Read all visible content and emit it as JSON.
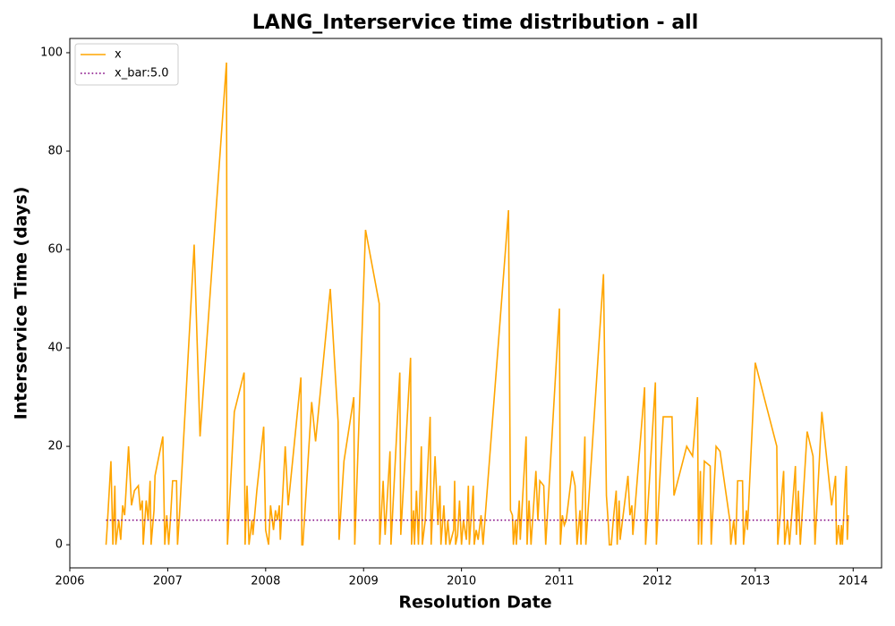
{
  "chart_data": {
    "type": "line",
    "title": "LANG_Interservice time distribution - all",
    "x_label": "Resolution Date",
    "y_label": "Interservice Time (days)",
    "xlim": [
      2006,
      2014.29
    ],
    "ylim": [
      -4.7,
      102.9
    ],
    "xticks": [
      2006,
      2007,
      2008,
      2009,
      2010,
      2011,
      2012,
      2013,
      2014
    ],
    "yticks": [
      0,
      20,
      40,
      60,
      80,
      100
    ],
    "legend": "upper left",
    "series": [
      {
        "name": "x",
        "color": "#ffa500",
        "style": "solid",
        "x": [
          2006.37,
          2006.38,
          2006.42,
          2006.44,
          2006.46,
          2006.47,
          2006.5,
          2006.52,
          2006.54,
          2006.56,
          2006.6,
          2006.63,
          2006.66,
          2006.7,
          2006.72,
          2006.74,
          2006.75,
          2006.78,
          2006.8,
          2006.82,
          2006.83,
          2006.86,
          2006.87,
          2006.95,
          2006.97,
          2006.99,
          2007.01,
          2007.03,
          2007.05,
          2007.09,
          2007.1,
          2007.12,
          2007.27,
          2007.33,
          2007.6,
          2007.61,
          2007.68,
          2007.78,
          2007.79,
          2007.81,
          2007.83,
          2007.86,
          2007.87,
          2007.91,
          2007.98,
          2008.0,
          2008.03,
          2008.05,
          2008.08,
          2008.1,
          2008.12,
          2008.14,
          2008.15,
          2008.2,
          2008.23,
          2008.36,
          2008.37,
          2008.38,
          2008.47,
          2008.51,
          2008.66,
          2008.74,
          2008.75,
          2008.8,
          2008.9,
          2008.91,
          2009.02,
          2009.16,
          2009.165,
          2009.2,
          2009.22,
          2009.27,
          2009.28,
          2009.37,
          2009.38,
          2009.48,
          2009.49,
          2009.51,
          2009.52,
          2009.54,
          2009.56,
          2009.59,
          2009.6,
          2009.63,
          2009.68,
          2009.69,
          2009.73,
          2009.76,
          2009.78,
          2009.79,
          2009.82,
          2009.84,
          2009.86,
          2009.88,
          2009.92,
          2009.93,
          2009.94,
          2009.96,
          2009.98,
          2010.0,
          2010.02,
          2010.05,
          2010.07,
          2010.08,
          2010.12,
          2010.13,
          2010.15,
          2010.17,
          2010.2,
          2010.22,
          2010.48,
          2010.5,
          2010.52,
          2010.53,
          2010.55,
          2010.56,
          2010.59,
          2010.6,
          2010.66,
          2010.67,
          2010.69,
          2010.71,
          2010.76,
          2010.78,
          2010.8,
          2010.84,
          2010.86,
          2011.0,
          2011.01,
          2011.03,
          2011.05,
          2011.07,
          2011.13,
          2011.16,
          2011.18,
          2011.21,
          2011.22,
          2011.26,
          2011.27,
          2011.45,
          2011.48,
          2011.5,
          2011.51,
          2011.53,
          2011.55,
          2011.58,
          2011.59,
          2011.61,
          2011.62,
          2011.7,
          2011.72,
          2011.74,
          2011.75,
          2011.87,
          2011.88,
          2011.98,
          2011.99,
          2012.06,
          2012.15,
          2012.17,
          2012.3,
          2012.36,
          2012.41,
          2012.42,
          2012.44,
          2012.45,
          2012.48,
          2012.54,
          2012.55,
          2012.6,
          2012.64,
          2012.74,
          2012.75,
          2012.78,
          2012.8,
          2012.82,
          2012.87,
          2012.88,
          2012.91,
          2012.92,
          2013.0,
          2013.09,
          2013.22,
          2013.23,
          2013.29,
          2013.3,
          2013.33,
          2013.35,
          2013.41,
          2013.42,
          2013.44,
          2013.46,
          2013.53,
          2013.59,
          2013.61,
          2013.68,
          2013.78,
          2013.82,
          2013.83,
          2013.85,
          2013.87,
          2013.88,
          2013.89,
          2013.92,
          2013.93,
          2013.94,
          2013.95
        ],
        "values": [
          0,
          3,
          17,
          0,
          12,
          0,
          5,
          1,
          8,
          6,
          20,
          8,
          11,
          12,
          7,
          9,
          0,
          9,
          5,
          13,
          0,
          7,
          14,
          22,
          0,
          6,
          0,
          6,
          13,
          13,
          0,
          6,
          61,
          22,
          98,
          0,
          27,
          35,
          0,
          12,
          0,
          5,
          2,
          11,
          24,
          3,
          0,
          8,
          3,
          7,
          5,
          8,
          1,
          20,
          8,
          34,
          0,
          0,
          29,
          21,
          52,
          25,
          1,
          17,
          30,
          0,
          64,
          49,
          0,
          13,
          2,
          19,
          0,
          35,
          2,
          38,
          0,
          7,
          0,
          11,
          0,
          20,
          0,
          5,
          26,
          0,
          18,
          4,
          12,
          0,
          8,
          0,
          5,
          0,
          3,
          13,
          0,
          2,
          9,
          0,
          5,
          1,
          12,
          0,
          12,
          0,
          3,
          1,
          6,
          0,
          68,
          7,
          6,
          0,
          5,
          0,
          9,
          1,
          22,
          0,
          9,
          0,
          15,
          5,
          13,
          12,
          0,
          48,
          0,
          6,
          4,
          5,
          15,
          12,
          0,
          7,
          0,
          22,
          0,
          55,
          10,
          4,
          0,
          0,
          5,
          11,
          0,
          9,
          1,
          14,
          6,
          8,
          2,
          32,
          0,
          33,
          0,
          26,
          26,
          10,
          20,
          18,
          30,
          0,
          15,
          0,
          17,
          16,
          0,
          20,
          19,
          5,
          0,
          5,
          0,
          13,
          13,
          0,
          7,
          3,
          37,
          30,
          20,
          0,
          15,
          0,
          5,
          0,
          16,
          2,
          11,
          0,
          23,
          18,
          0,
          27,
          8,
          14,
          0,
          4,
          0,
          4,
          0,
          13,
          16,
          1,
          6
        ]
      },
      {
        "name": "x_bar:5.0",
        "color": "#800080",
        "style": "dotted",
        "x": [
          2006.37,
          2013.95
        ],
        "values": [
          5.0,
          5.0
        ]
      }
    ]
  }
}
